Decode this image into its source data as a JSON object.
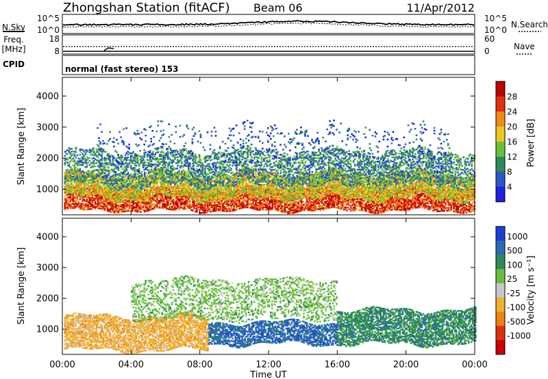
{
  "header": {
    "title": "Zhongshan Station (fitACF)",
    "beam": "Beam 06",
    "date": "11/Apr/2012"
  },
  "top_panels": {
    "nsky_label": "N.Sky",
    "nsky_ticks": [
      "10^5",
      "10^0"
    ],
    "nsearch_label": "N.Search",
    "nsearch_ticks": [
      "10^5",
      "10^0"
    ],
    "freq_label": "Freq.",
    "freq_unit": "[MHz]",
    "freq_ticks": [
      "18",
      "8"
    ],
    "nave_label": "Nave",
    "nave_ticks": [
      "60",
      "0"
    ],
    "cpid_label": "CPID",
    "cpid_text": "normal (fast stereo) 153"
  },
  "x_axis": {
    "label": "Time UT",
    "ticks": [
      "00:00",
      "04:00",
      "08:00",
      "12:00",
      "16:00",
      "20:00",
      "00:00"
    ]
  },
  "chart_data": [
    {
      "type": "heatmap",
      "panel": "power",
      "ylabel": "Slant Range [km]",
      "ylim": [
        180,
        4600
      ],
      "y_ticks": [
        1000,
        2000,
        3000,
        4000
      ],
      "xlim_hours": [
        0,
        24
      ],
      "colorbar_label": "Power [dB]",
      "colorbar_ticks": [
        "4",
        "8",
        "12",
        "16",
        "20",
        "24",
        "28"
      ],
      "colors": [
        "#1f1fe6",
        "#2c55c8",
        "#2f8a5a",
        "#6cbf3c",
        "#e8c81e",
        "#f08a18",
        "#e03010",
        "#c00000"
      ],
      "echo_regions": [
        {
          "t0": 0.1,
          "t1": 24.0,
          "r0": 300,
          "r1": 1000,
          "level": 6
        },
        {
          "t0": 0.1,
          "t1": 24.0,
          "r0": 700,
          "r1": 1500,
          "level": 4
        },
        {
          "t0": 0.1,
          "t1": 24.0,
          "r0": 1100,
          "r1": 2200,
          "level": 2
        },
        {
          "t0": 2.0,
          "t1": 22.5,
          "r0": 1600,
          "r1": 3000,
          "level": 1
        }
      ]
    },
    {
      "type": "heatmap",
      "panel": "velocity",
      "ylabel": "Slant Range [km]",
      "ylim": [
        180,
        4600
      ],
      "y_ticks": [
        1000,
        2000,
        3000,
        4000
      ],
      "xlim_hours": [
        0,
        24
      ],
      "colorbar_label": "Velocity [m s⁻¹]",
      "colorbar_ticks": [
        "1000",
        "500",
        "100",
        "25",
        "-25",
        "-100",
        "-500",
        "-1000"
      ],
      "colors": [
        "#1d3fd6",
        "#2c6ab6",
        "#2f8a5a",
        "#6cbf3c",
        "#c8c8c8",
        "#f0b030",
        "#f08018",
        "#e03010",
        "#cc0000"
      ],
      "echo_regions": [
        {
          "t0": 0.1,
          "t1": 8.5,
          "r0": 300,
          "r1": 1400,
          "level": "-100"
        },
        {
          "t0": 8.5,
          "t1": 16.0,
          "r0": 500,
          "r1": 1200,
          "level": "500"
        },
        {
          "t0": 16.0,
          "t1": 24.0,
          "r0": 500,
          "r1": 1600,
          "level": "100"
        },
        {
          "t0": 4.0,
          "t1": 16.0,
          "r0": 1300,
          "r1": 2600,
          "level": "25"
        }
      ]
    }
  ]
}
